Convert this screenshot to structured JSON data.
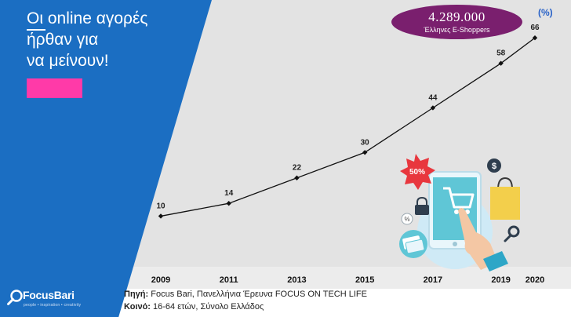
{
  "headline": {
    "line1": "Οι online αγορές",
    "line2": "ήρθαν για",
    "line3": "να μείνουν!"
  },
  "badge": {
    "value": "4.289.000",
    "label": "Έλληνες E-Shoppers"
  },
  "unit_label": "(%)",
  "source": {
    "line1_label": "Πηγή:",
    "line1_text": "Focus Bari, Πανελλήνια Έρευνα FOCUS ON TECH LIFE",
    "line2_label": "Κοινό:",
    "line2_text": "16-64 ετών, Σύνολο Ελλάδος"
  },
  "logo": {
    "name": "FocusBari",
    "tagline": "people • inspiration • creativity"
  },
  "illustration": {
    "discount_label": "50%",
    "icons": [
      "discount-star-icon",
      "dollar-coin-icon",
      "shopping-bag-icon",
      "padlock-icon",
      "percent-tag-icon",
      "credit-cards-icon",
      "tablet-cart-icon",
      "pointing-hand-icon",
      "magnifier-icon"
    ]
  },
  "colors": {
    "blue_panel": "#1b6ec2",
    "badge": "#7a1f6e",
    "pink_tag": "#ff3aa8",
    "line": "#111111",
    "unit": "#2a63c8"
  },
  "chart_data": {
    "type": "line",
    "title": "",
    "xlabel": "",
    "ylabel": "",
    "categories": [
      "2009",
      "2011",
      "2013",
      "2015",
      "2017",
      "2019",
      "2020"
    ],
    "series": [
      {
        "values": [
          10,
          14,
          22,
          30,
          44,
          58,
          66
        ]
      }
    ],
    "ylim": [
      0,
      70
    ],
    "grid": false,
    "legend": "none"
  }
}
